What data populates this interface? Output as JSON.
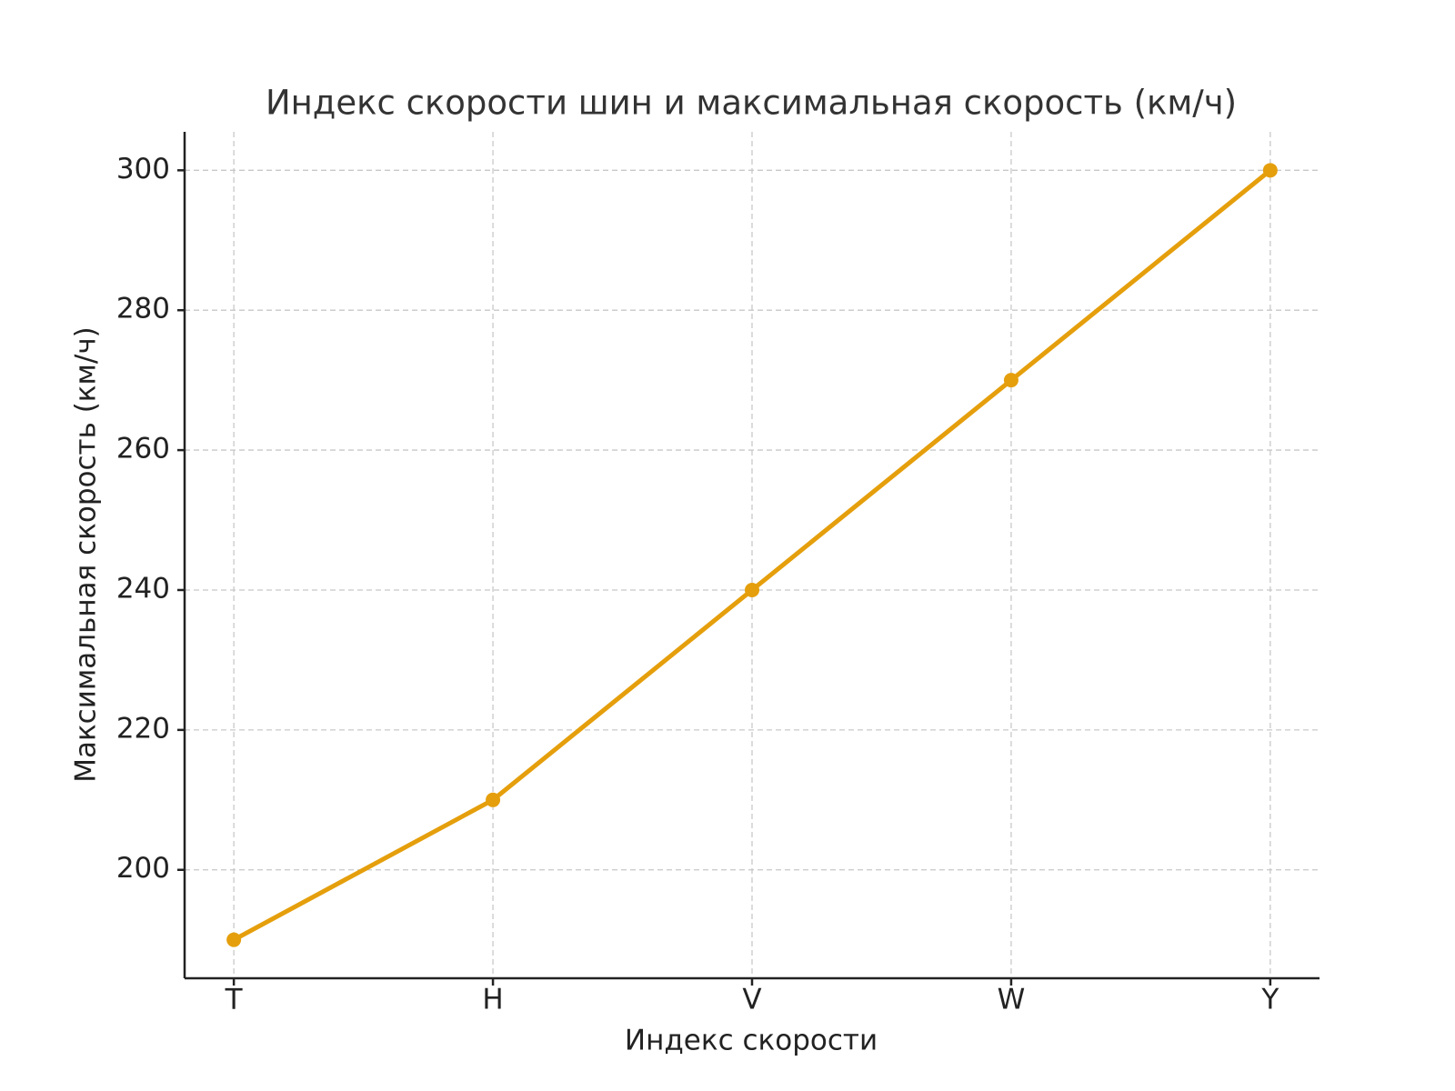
{
  "chart_data": {
    "type": "line",
    "title": "Индекс скорости шин и максимальная скорость (км/ч)",
    "x_label": "Индекс скорости",
    "y_label": "Максимальная скорость (км/ч)",
    "categories": [
      "T",
      "H",
      "V",
      "W",
      "Y"
    ],
    "series": [
      {
        "name": "Максимальная скорость",
        "color": "#e59f0c",
        "values": [
          190,
          210,
          240,
          270,
          300
        ]
      }
    ],
    "ylim": [
      184.5,
      305.5
    ],
    "yticks": [
      200,
      220,
      240,
      260,
      280,
      300
    ],
    "grid": true
  }
}
